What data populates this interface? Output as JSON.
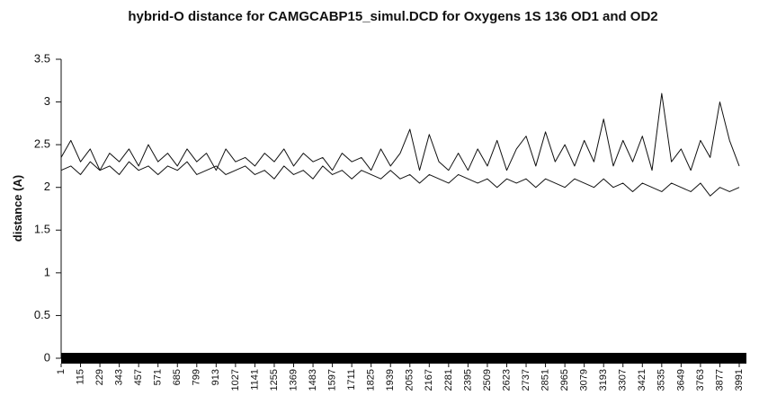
{
  "chart_data": {
    "type": "line",
    "title": "hybrid-O distance for CAMGCABP15_simul.DCD for Oxygens 1S 136 OD1 and OD2",
    "y_label": "distance (A)",
    "x": [
      1,
      58,
      115,
      172,
      229,
      286,
      343,
      400,
      457,
      514,
      571,
      628,
      685,
      742,
      799,
      856,
      913,
      970,
      1027,
      1084,
      1141,
      1198,
      1255,
      1312,
      1369,
      1426,
      1483,
      1540,
      1597,
      1654,
      1711,
      1768,
      1825,
      1882,
      1939,
      1996,
      2053,
      2110,
      2167,
      2224,
      2281,
      2338,
      2395,
      2452,
      2509,
      2566,
      2623,
      2680,
      2737,
      2794,
      2851,
      2908,
      2965,
      3022,
      3079,
      3136,
      3193,
      3250,
      3307,
      3364,
      3421,
      3478,
      3535,
      3592,
      3649,
      3706,
      3763,
      3820,
      3877,
      3934,
      3991
    ],
    "series": [
      {
        "color": "#111111",
        "values": [
          2.35,
          2.55,
          2.3,
          2.45,
          2.2,
          2.4,
          2.3,
          2.45,
          2.25,
          2.5,
          2.3,
          2.4,
          2.25,
          2.45,
          2.3,
          2.4,
          2.2,
          2.45,
          2.3,
          2.35,
          2.25,
          2.4,
          2.3,
          2.45,
          2.25,
          2.4,
          2.3,
          2.35,
          2.2,
          2.4,
          2.3,
          2.35,
          2.2,
          2.45,
          2.25,
          2.4,
          2.68,
          2.2,
          2.62,
          2.3,
          2.2,
          2.4,
          2.2,
          2.45,
          2.25,
          2.55,
          2.2,
          2.45,
          2.6,
          2.25,
          2.65,
          2.3,
          2.5,
          2.25,
          2.55,
          2.3,
          2.8,
          2.25,
          2.55,
          2.3,
          2.6,
          2.2,
          3.1,
          2.3,
          2.45,
          2.2,
          2.55,
          2.35,
          3.0,
          2.55,
          2.25
        ]
      },
      {
        "color": "#111111",
        "values": [
          2.2,
          2.25,
          2.15,
          2.3,
          2.2,
          2.25,
          2.15,
          2.3,
          2.2,
          2.25,
          2.15,
          2.25,
          2.2,
          2.3,
          2.15,
          2.2,
          2.25,
          2.15,
          2.2,
          2.25,
          2.15,
          2.2,
          2.1,
          2.25,
          2.15,
          2.2,
          2.1,
          2.25,
          2.15,
          2.2,
          2.1,
          2.2,
          2.15,
          2.1,
          2.2,
          2.1,
          2.15,
          2.05,
          2.15,
          2.1,
          2.05,
          2.15,
          2.1,
          2.05,
          2.1,
          2.0,
          2.1,
          2.05,
          2.1,
          2.0,
          2.1,
          2.05,
          2.0,
          2.1,
          2.05,
          2.0,
          2.1,
          2.0,
          2.05,
          1.95,
          2.05,
          2.0,
          1.95,
          2.05,
          2.0,
          1.95,
          2.05,
          1.9,
          2.0,
          1.95,
          2.0
        ]
      }
    ],
    "xlim": [
      1,
      3991
    ],
    "xticks": [
      1,
      115,
      229,
      343,
      457,
      571,
      685,
      799,
      913,
      1027,
      1141,
      1255,
      1369,
      1483,
      1597,
      1711,
      1825,
      1939,
      2053,
      2167,
      2281,
      2395,
      2509,
      2623,
      2737,
      2851,
      2965,
      3079,
      3193,
      3307,
      3421,
      3535,
      3649,
      3763,
      3877,
      3991
    ],
    "ylim": [
      0,
      3.5
    ],
    "yticks": [
      0,
      0.5,
      1,
      1.5,
      2,
      2.5,
      3,
      3.5
    ]
  }
}
